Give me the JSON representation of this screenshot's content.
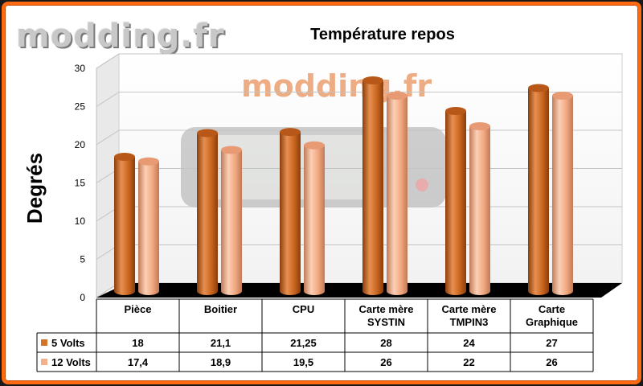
{
  "watermark": "modding.fr",
  "chart_data": {
    "type": "bar",
    "title": "Température repos",
    "xlabel": "",
    "ylabel": "Degrés",
    "ylim": [
      0,
      30
    ],
    "yticks": [
      0,
      5,
      10,
      15,
      20,
      25,
      30
    ],
    "categories": [
      "Pièce",
      "Boitier",
      "CPU",
      "Carte mère SYSTIN",
      "Carte mère TMPIN3",
      "Carte Graphique"
    ],
    "category_lines": [
      [
        "Pièce"
      ],
      [
        "Boitier"
      ],
      [
        "CPU"
      ],
      [
        "Carte mère",
        "SYSTIN"
      ],
      [
        "Carte mère",
        "TMPIN3"
      ],
      [
        "Carte",
        "Graphique"
      ]
    ],
    "series": [
      {
        "name": "5 Volts",
        "values": [
          18,
          21.1,
          21.25,
          28,
          24,
          27
        ],
        "labels": [
          "18",
          "21,1",
          "21,25",
          "28",
          "24",
          "27"
        ],
        "color": "#d4742a"
      },
      {
        "name": "12 Volts",
        "values": [
          17.4,
          18.9,
          19.5,
          26,
          22,
          26
        ],
        "labels": [
          "17,4",
          "18,9",
          "19,5",
          "26",
          "22",
          "26"
        ],
        "color": "#f4b08a"
      }
    ],
    "grid": true,
    "legend": "data-table"
  }
}
